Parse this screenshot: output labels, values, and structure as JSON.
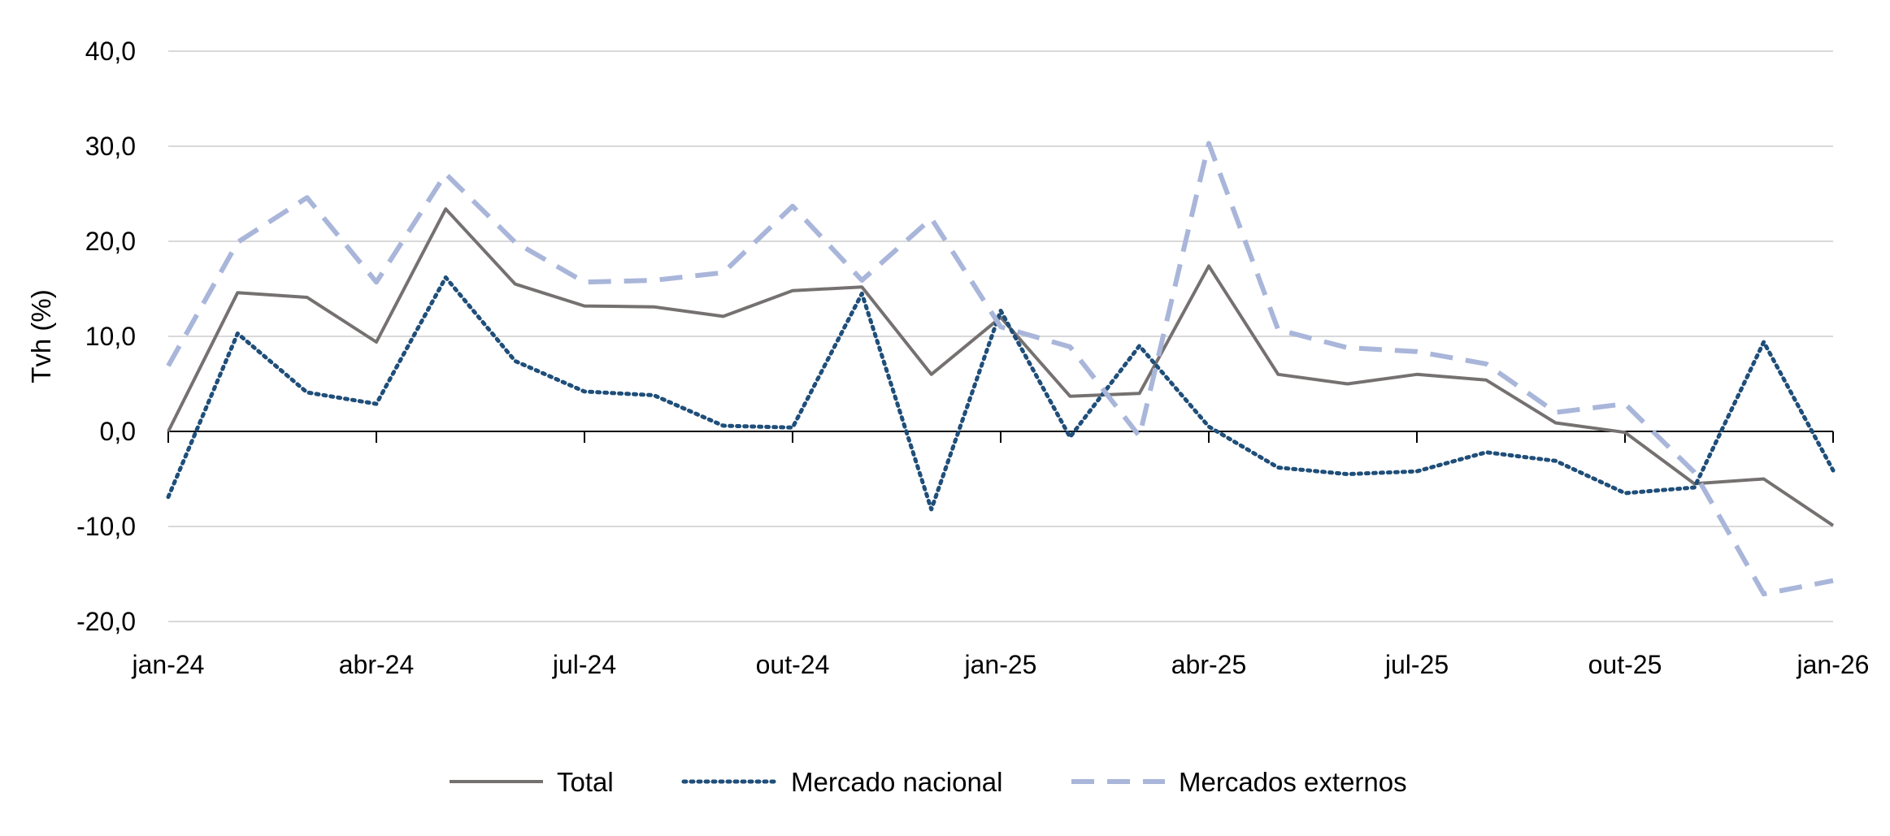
{
  "chart_data": {
    "type": "line",
    "title": "",
    "xlabel": "",
    "ylabel": "Tvh (%)",
    "ylim": [
      -20,
      40
    ],
    "yticks": [
      "-20,0",
      "-10,0",
      "0,0",
      "10,0",
      "20,0",
      "30,0",
      "40,0"
    ],
    "ytick_values": [
      -20,
      -10,
      0,
      10,
      20,
      30,
      40
    ],
    "grid": true,
    "legend_position": "bottom",
    "x": [
      "jan-24",
      "fev-24",
      "mar-24",
      "abr-24",
      "mai-24",
      "jun-24",
      "jul-24",
      "ago-24",
      "set-24",
      "out-24",
      "nov-24",
      "dez-24",
      "jan-25",
      "fev-25",
      "mar-25",
      "abr-25",
      "mai-25",
      "jun-25",
      "jul-25",
      "ago-25",
      "set-25",
      "out-25",
      "nov-25",
      "dez-25",
      "jan-26"
    ],
    "xtick_labels": [
      "jan-24",
      "abr-24",
      "jul-24",
      "out-24",
      "jan-25",
      "abr-25",
      "jul-25",
      "out-25",
      "jan-26"
    ],
    "xtick_indices": [
      0,
      3,
      6,
      9,
      12,
      15,
      18,
      21,
      24
    ],
    "series": [
      {
        "name": "Total",
        "color": "#767171",
        "style": "solid",
        "values": [
          0.0,
          14.6,
          14.1,
          9.4,
          23.4,
          15.5,
          13.2,
          13.1,
          12.1,
          14.8,
          15.2,
          6.0,
          12.0,
          3.7,
          4.0,
          17.4,
          6.0,
          5.0,
          6.0,
          5.4,
          0.9,
          -0.1,
          -5.5,
          -5.0,
          -9.9
        ]
      },
      {
        "name": "Mercado nacional",
        "color": "#1f4e79",
        "style": "dotted",
        "values": [
          -6.9,
          10.3,
          4.1,
          2.9,
          16.2,
          7.4,
          4.2,
          3.8,
          0.6,
          0.4,
          14.5,
          -8.2,
          12.7,
          -0.6,
          9.0,
          0.5,
          -3.8,
          -4.5,
          -4.2,
          -2.2,
          -3.1,
          -6.5,
          -5.9,
          9.4,
          -4.1
        ]
      },
      {
        "name": "Mercados externos",
        "color": "#a9b6da",
        "style": "dashed",
        "values": [
          6.9,
          19.9,
          24.6,
          15.7,
          27.1,
          19.9,
          15.7,
          15.9,
          16.7,
          23.7,
          15.9,
          22.4,
          11.0,
          8.9,
          -0.5,
          30.3,
          10.7,
          8.8,
          8.4,
          7.1,
          2.0,
          2.9,
          -4.3,
          -17.1,
          -15.7
        ]
      }
    ]
  }
}
